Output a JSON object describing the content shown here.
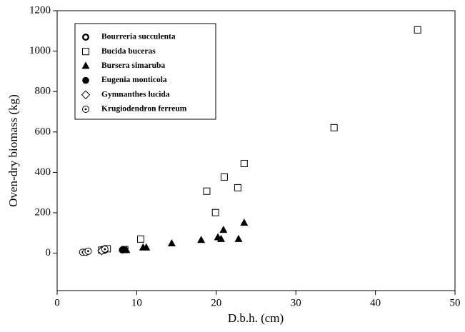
{
  "chart_data": {
    "type": "scatter",
    "x_label": "D.b.h. (cm)",
    "y_label": "Oven-dry biomass (kg)",
    "xlim": [
      0,
      50
    ],
    "xticks": [
      0,
      10,
      20,
      30,
      40,
      50
    ],
    "ylim": [
      -185,
      1200
    ],
    "yticks": [
      0,
      200,
      400,
      600,
      800,
      1000,
      1200
    ],
    "legend": "upper left",
    "series": [
      {
        "name": "Bourreria succulenta",
        "marker": "ring",
        "color": "#000000",
        "x": [
          5.7,
          8.2
        ],
        "values": [
          18,
          16
        ]
      },
      {
        "name": "Bucida buceras",
        "marker": "square",
        "color": "#000000",
        "x": [
          45.3,
          34.8,
          23.5,
          21.0,
          18.8,
          22.7,
          19.9,
          10.5,
          5.6,
          6.3,
          8.5
        ],
        "values": [
          1105,
          621,
          444,
          377,
          307,
          324,
          201,
          70,
          15,
          22,
          18
        ]
      },
      {
        "name": "Bursera simaruba",
        "marker": "triangle",
        "color": "#000000",
        "x": [
          23.5,
          20.9,
          22.8,
          20.2,
          20.6,
          18.1,
          14.4,
          11.2,
          10.8,
          8.7
        ],
        "values": [
          150,
          115,
          70,
          78,
          70,
          65,
          48,
          28,
          28,
          15
        ]
      },
      {
        "name": "Eugenia monticola",
        "marker": "dot",
        "color": "#000000",
        "x": [
          8.3,
          6.0
        ],
        "values": [
          18,
          15
        ]
      },
      {
        "name": "Gymnanthes lucida",
        "marker": "diamond",
        "color": "#000000",
        "x": [
          5.6
        ],
        "values": [
          12
        ]
      },
      {
        "name": "Krugiodendron ferreum",
        "marker": "dotted-circle",
        "color": "#000000",
        "x": [
          3.2,
          3.6,
          3.9,
          6.0
        ],
        "values": [
          5,
          5,
          10,
          20
        ]
      }
    ]
  }
}
